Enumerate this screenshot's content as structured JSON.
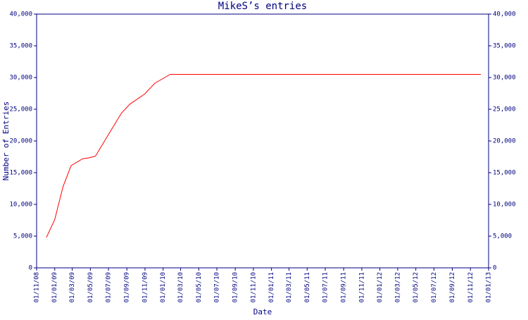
{
  "chart_data": {
    "type": "line",
    "title": "MikeS’s entries",
    "x_label": "Date",
    "y_label": "Number of Entries",
    "x": [
      "2008-12-04",
      "2009-01-01",
      "2009-01-29",
      "2009-02-25",
      "2009-04-05",
      "2009-04-22",
      "2009-05-18",
      "2009-07-02",
      "2009-08-14",
      "2009-09-11",
      "2009-10-31",
      "2009-12-04",
      "2010-01-25",
      "2012-12-06"
    ],
    "series": [
      {
        "name": "Entries",
        "color": "#ff0000",
        "values": [
          4800,
          7600,
          12800,
          16100,
          17200,
          17300,
          17600,
          21100,
          24400,
          25800,
          27400,
          29100,
          30500,
          30500
        ]
      }
    ],
    "xlim": [
      "2008-11-01",
      "2013-01-01"
    ],
    "xticks": [
      {
        "value": "2008-11-01",
        "label": "01/11/08"
      },
      {
        "value": "2009-01-01",
        "label": "01/01/09"
      },
      {
        "value": "2009-03-01",
        "label": "01/03/09"
      },
      {
        "value": "2009-05-01",
        "label": "01/05/09"
      },
      {
        "value": "2009-07-01",
        "label": "01/07/09"
      },
      {
        "value": "2009-09-01",
        "label": "01/09/09"
      },
      {
        "value": "2009-11-01",
        "label": "01/11/09"
      },
      {
        "value": "2010-01-01",
        "label": "01/01/10"
      },
      {
        "value": "2010-03-01",
        "label": "01/03/10"
      },
      {
        "value": "2010-05-01",
        "label": "01/05/10"
      },
      {
        "value": "2010-07-01",
        "label": "01/07/10"
      },
      {
        "value": "2010-09-01",
        "label": "01/09/10"
      },
      {
        "value": "2010-11-01",
        "label": "01/11/10"
      },
      {
        "value": "2011-01-01",
        "label": "01/01/11"
      },
      {
        "value": "2011-03-01",
        "label": "01/03/11"
      },
      {
        "value": "2011-05-01",
        "label": "01/05/11"
      },
      {
        "value": "2011-07-01",
        "label": "01/07/11"
      },
      {
        "value": "2011-09-01",
        "label": "01/09/11"
      },
      {
        "value": "2011-11-01",
        "label": "01/11/11"
      },
      {
        "value": "2012-01-01",
        "label": "01/01/12"
      },
      {
        "value": "2012-03-01",
        "label": "01/03/12"
      },
      {
        "value": "2012-05-01",
        "label": "01/05/12"
      },
      {
        "value": "2012-07-01",
        "label": "01/07/12"
      },
      {
        "value": "2012-09-01",
        "label": "01/09/12"
      },
      {
        "value": "2012-11-01",
        "label": "01/11/12"
      },
      {
        "value": "2013-01-01",
        "label": "01/01/13"
      }
    ],
    "ylim": [
      0,
      40000
    ],
    "yticks": [
      0,
      {
        "value": 5000,
        "label": "5,000"
      },
      {
        "value": 10000,
        "label": "10,000"
      },
      {
        "value": 15000,
        "label": "15,000"
      },
      {
        "value": 20000,
        "label": "20,000"
      },
      {
        "value": 25000,
        "label": "25,000"
      },
      {
        "value": 30000,
        "label": "30,000"
      },
      {
        "value": 35000,
        "label": "35,000"
      },
      {
        "value": 40000,
        "label": "40,000"
      }
    ],
    "y2lim": [
      0,
      40000
    ],
    "y2ticks": [
      0,
      {
        "value": 5000,
        "label": "5,000"
      },
      {
        "value": 10000,
        "label": "10,000"
      },
      {
        "value": 15000,
        "label": "15,000"
      },
      {
        "value": 20000,
        "label": "20,000"
      },
      {
        "value": 25000,
        "label": "25,000"
      },
      {
        "value": 30000,
        "label": "30,000"
      },
      {
        "value": 35000,
        "label": "35,000"
      },
      {
        "value": 40000,
        "label": "40,000"
      }
    ],
    "grid": false,
    "axis_color": "#000080"
  }
}
